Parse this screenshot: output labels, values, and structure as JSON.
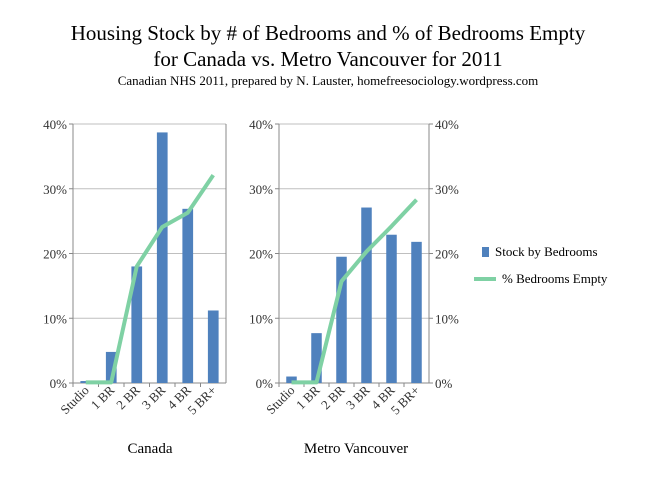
{
  "title_line1": "Housing Stock by # of Bedrooms and % of Bedrooms Empty",
  "title_line2": "for Canada vs. Metro Vancouver  for 2011",
  "subtitle": "Canadian  NHS 2011, prepared  by N. Lauster,  homefreesociology.wordpress.com",
  "colors": {
    "bars": "#4f81bd",
    "line": "#7fd1a4",
    "grid": "#bfbfbf"
  },
  "legend": [
    {
      "label": "Stock by Bedrooms",
      "type": "bar"
    },
    {
      "label": "% Bedrooms Empty",
      "type": "line"
    }
  ],
  "chart_data": [
    {
      "type": "bar+line",
      "xlabel": "Canada",
      "categories": [
        "Studio",
        "1 BR",
        "2 BR",
        "3 BR",
        "4 BR",
        "5 BR+"
      ],
      "yticks": [
        "0%",
        "10%",
        "20%",
        "30%",
        "40%"
      ],
      "ylim": [
        0,
        40
      ],
      "grid": true,
      "series": [
        {
          "name": "Stock by Bedrooms",
          "kind": "bar",
          "values": [
            0.3,
            4.8,
            18.0,
            38.7,
            26.9,
            11.2
          ]
        },
        {
          "name": "% Bedrooms Empty",
          "kind": "line",
          "values": [
            0.1,
            0.1,
            18.0,
            24.1,
            26.3,
            32.1
          ]
        }
      ]
    },
    {
      "type": "bar+line",
      "xlabel": "Metro Vancouver",
      "categories": [
        "Studio",
        "1 BR",
        "2 BR",
        "3 BR",
        "4 BR",
        "5 BR+"
      ],
      "yticks": [
        "0%",
        "10%",
        "20%",
        "30%",
        "40%"
      ],
      "ylim": [
        0,
        40
      ],
      "grid": true,
      "series": [
        {
          "name": "Stock by Bedrooms",
          "kind": "bar",
          "values": [
            1.0,
            7.7,
            19.5,
            27.1,
            22.9,
            21.8
          ]
        },
        {
          "name": "% Bedrooms Empty",
          "kind": "line",
          "values": [
            0.1,
            0.1,
            15.7,
            20.3,
            24.2,
            28.3
          ]
        }
      ]
    }
  ]
}
